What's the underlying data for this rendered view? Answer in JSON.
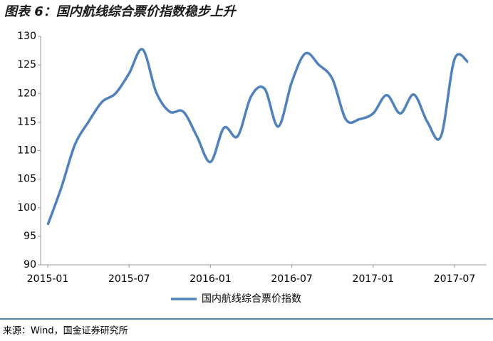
{
  "chart_data": {
    "type": "line",
    "title": "图表 6：国内航线综合票价指数稳步上升",
    "source": "来源：Wind，国金证券研究所",
    "categories": [
      "2015-01",
      null,
      null,
      null,
      null,
      null,
      "2015-07",
      null,
      null,
      null,
      null,
      null,
      "2016-01",
      null,
      null,
      null,
      null,
      null,
      "2016-07",
      null,
      null,
      null,
      null,
      null,
      "2017-01",
      null,
      null,
      null,
      null,
      null,
      "2017-07",
      null
    ],
    "series": [
      {
        "name": "国内航线综合票价指数",
        "color": "#4f81bd",
        "values": [
          97,
          103.5,
          111,
          115,
          118.5,
          120,
          123.5,
          127.7,
          120.2,
          116.8,
          116.8,
          112.5,
          108,
          114,
          112.5,
          119.5,
          120.8,
          114.2,
          122,
          127,
          125,
          122.5,
          115.4,
          115.5,
          116.5,
          119.7,
          116.5,
          119.8,
          115,
          112.5,
          126,
          125.5
        ]
      }
    ],
    "ylim": [
      90,
      130
    ],
    "yticks": [
      90,
      95,
      100,
      105,
      110,
      115,
      120,
      125,
      130
    ],
    "grid": false,
    "legend": "bottom"
  }
}
